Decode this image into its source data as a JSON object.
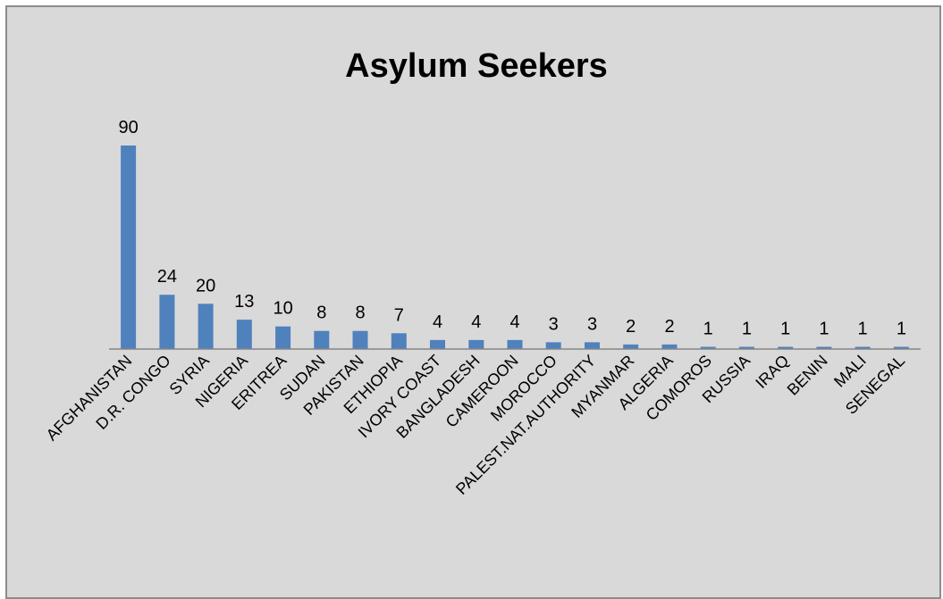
{
  "chart_data": {
    "type": "bar",
    "title": "Asylum Seekers",
    "xlabel": "",
    "ylabel": "",
    "categories": [
      "AFGHANISTAN",
      "D.R. CONGO",
      "SYRIA",
      "NIGERIA",
      "ERITREA",
      "SUDAN",
      "PAKISTAN",
      "ETHIOPIA",
      "IVORY COAST",
      "BANGLADESH",
      "CAMEROON",
      "MOROCCO",
      "PALEST.NAT.AUTHORITY",
      "MYANMAR",
      "ALGERIA",
      "COMOROS",
      "RUSSIA",
      "IRAQ",
      "BENIN",
      "MALI",
      "SENEGAL"
    ],
    "values": [
      90,
      24,
      20,
      13,
      10,
      8,
      8,
      7,
      4,
      4,
      4,
      3,
      3,
      2,
      2,
      1,
      1,
      1,
      1,
      1,
      1
    ],
    "ylim": [
      0,
      90
    ],
    "grid": false,
    "legend": "none",
    "data_labels": true,
    "colors": {
      "bar": "#4f81bd",
      "background": "#d9d9d9",
      "axis": "#868686",
      "frame_border": "#8c8c8c"
    }
  }
}
